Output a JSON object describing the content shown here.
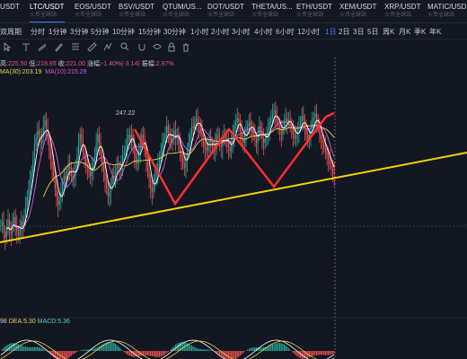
{
  "tickers": [
    {
      "sym": "USDT",
      "sub": "",
      "active": false
    },
    {
      "sym": "LTC/USDT",
      "sub": "火币全球站",
      "active": true
    },
    {
      "sym": "EOS/USDT",
      "sub": "火币全球站",
      "active": false
    },
    {
      "sym": "BSV/USDT",
      "sub": "火币全球站",
      "active": false
    },
    {
      "sym": "QTUM/US...",
      "sub": "火币全球站",
      "active": false
    },
    {
      "sym": "DOT/USDT",
      "sub": "火币全球站",
      "active": false
    },
    {
      "sym": "THETA/US...",
      "sub": "火币全球站",
      "active": false
    },
    {
      "sym": "ETH/USDT",
      "sub": "火币全球站",
      "active": false
    },
    {
      "sym": "XEM/USDT",
      "sub": "火币全球站",
      "active": false
    },
    {
      "sym": "XRP/USDT",
      "sub": "火币全球站",
      "active": false
    },
    {
      "sym": "MATIC/USD",
      "sub": "火币全球站",
      "active": false
    }
  ],
  "timeframes": [
    {
      "label": "双周期",
      "active": false
    },
    {
      "label": "分时",
      "active": false
    },
    {
      "label": "1分钟",
      "active": false
    },
    {
      "label": "3分钟",
      "active": false
    },
    {
      "label": "5分钟",
      "active": false
    },
    {
      "label": "10分钟",
      "active": false
    },
    {
      "label": "15分钟",
      "active": false
    },
    {
      "label": "30分钟",
      "active": false
    },
    {
      "label": "1小时",
      "active": false
    },
    {
      "label": "2小时",
      "active": false
    },
    {
      "label": "3小时",
      "active": false
    },
    {
      "label": "4小时",
      "active": false
    },
    {
      "label": "6小时",
      "active": false
    },
    {
      "label": "12小时",
      "active": false
    },
    {
      "label": "1日",
      "active": true
    },
    {
      "label": "2日",
      "active": false
    },
    {
      "label": "3日",
      "active": false
    },
    {
      "label": "5日",
      "active": false
    },
    {
      "label": "周K",
      "active": false
    },
    {
      "label": "月K",
      "active": false
    },
    {
      "label": "季K",
      "active": false
    },
    {
      "label": "年K",
      "active": false
    }
  ],
  "ohlc": {
    "high_label": "高:",
    "high": "225.50",
    "low_label": "低:",
    "low": "218.85",
    "close_label": "收:",
    "close": "221.00",
    "change_label": "涨幅:",
    "change": "-1.40%(-3.14)",
    "amp_label": "振幅:",
    "amp": "2.97%"
  },
  "ma": {
    "ma30_label": "MA(30):",
    "ma30": "203.19",
    "ma10_label": "MA(10):",
    "ma10": "215.29"
  },
  "macd": {
    "prefix": "98",
    "dea_label": "DEA:",
    "dea": "5.30",
    "macd_label": "MACD:",
    "macd": "5.36"
  },
  "price_marker": "247.22",
  "colors": {
    "background": "#131722",
    "up": "#26a69a",
    "down": "#ef5350",
    "trendline": "#f5d300",
    "accent": "#3a7cf0"
  },
  "chart_data": {
    "type": "candlestick",
    "title": "",
    "high_marker": 247.22,
    "close_values": [
      196,
      198,
      193,
      190,
      195,
      199,
      194,
      192,
      197,
      200,
      196,
      193,
      191,
      195,
      198,
      196,
      200,
      205,
      210,
      214,
      218,
      222,
      228,
      235,
      238,
      242,
      240,
      236,
      239,
      244,
      247,
      243,
      238,
      232,
      228,
      224,
      220,
      214,
      210,
      206,
      208,
      212,
      216,
      220,
      218,
      222,
      226,
      224,
      220,
      219,
      221,
      225,
      230,
      236,
      240,
      238,
      232,
      228,
      226,
      224,
      222,
      220,
      224,
      226,
      230,
      236,
      240,
      236,
      230,
      226,
      222,
      218,
      214,
      210,
      212,
      216,
      220,
      219,
      222,
      225,
      224,
      223,
      226,
      230,
      232,
      234,
      238,
      240,
      236,
      240,
      236,
      230,
      226,
      228,
      232,
      236,
      240,
      238,
      234,
      228,
      222,
      218,
      214,
      212,
      216,
      220,
      222,
      226,
      229,
      232,
      236,
      238,
      240,
      244,
      241,
      238,
      236,
      240,
      242,
      238,
      240,
      236,
      232,
      229,
      226,
      224,
      228,
      232,
      236,
      240,
      244,
      243,
      246,
      248,
      246,
      244,
      242,
      238,
      236,
      234,
      232,
      236,
      238,
      236,
      234,
      232,
      236,
      240,
      238,
      236,
      234,
      238,
      240,
      238,
      236,
      234,
      232,
      236,
      240,
      244,
      246,
      248,
      246,
      242,
      238,
      236,
      240,
      242,
      244,
      246,
      244,
      242,
      240,
      238,
      236,
      240,
      244,
      242,
      238,
      236,
      238,
      240,
      243,
      246,
      248,
      250,
      252,
      249,
      246,
      244,
      242,
      240,
      244,
      246,
      248,
      246,
      247,
      245,
      243,
      240,
      238,
      240,
      242,
      244,
      246,
      249,
      247,
      243,
      240,
      238,
      240,
      243,
      246,
      248,
      250,
      247,
      244,
      240,
      238,
      236,
      234,
      232,
      230,
      228,
      226,
      224,
      222,
      221
    ],
    "ma30_last": 203.19,
    "ma10_last": 215.29,
    "macd": {
      "dea": 5.3,
      "macd": 5.36
    }
  }
}
